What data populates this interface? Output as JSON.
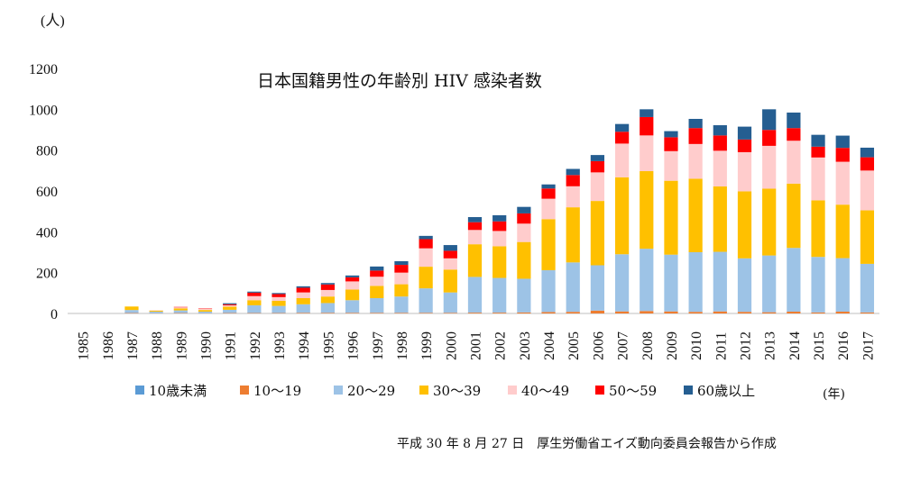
{
  "chart_data": {
    "type": "bar",
    "stacked": true,
    "title": "日本国籍男性の年齢別 HIV 感染者数",
    "ylabel": "(人)",
    "xlabel": "(年)",
    "ylim": [
      0,
      1200
    ],
    "yticks": [
      "0",
      "200",
      "400",
      "600",
      "800",
      "1000",
      "1200"
    ],
    "grid": false,
    "legend_position": "bottom",
    "categories": [
      "1985",
      "1986",
      "1987",
      "1988",
      "1989",
      "1990",
      "1991",
      "1992",
      "1993",
      "1994",
      "1995",
      "1996",
      "1997",
      "1998",
      "1999",
      "2000",
      "2001",
      "2002",
      "2003",
      "2004",
      "2005",
      "2006",
      "2007",
      "2008",
      "2009",
      "2010",
      "2011",
      "2012",
      "2013",
      "2014",
      "2015",
      "2016",
      "2017"
    ],
    "series": [
      {
        "name": "10歳未満",
        "color": "#5b9bd5",
        "values": [
          0,
          0,
          0,
          0,
          0,
          0,
          0,
          0,
          0,
          0,
          0,
          0,
          0,
          0,
          0,
          0,
          0,
          0,
          0,
          0,
          0,
          0,
          0,
          0,
          0,
          0,
          0,
          0,
          0,
          0,
          0,
          0,
          0
        ]
      },
      {
        "name": "10～19",
        "color": "#ed7d31",
        "values": [
          0,
          0,
          2,
          1,
          2,
          1,
          2,
          2,
          2,
          3,
          3,
          3,
          3,
          3,
          3,
          3,
          4,
          4,
          5,
          7,
          8,
          14,
          10,
          12,
          10,
          8,
          10,
          8,
          6,
          9,
          5,
          9,
          5
        ]
      },
      {
        "name": "20～29",
        "color": "#9dc3e6",
        "values": [
          0,
          0,
          15,
          8,
          13,
          8,
          16,
          38,
          35,
          42,
          48,
          62,
          72,
          80,
          120,
          100,
          175,
          170,
          165,
          205,
          242,
          222,
          280,
          305,
          278,
          292,
          292,
          262,
          278,
          312,
          272,
          262,
          238
        ]
      },
      {
        "name": "30～39",
        "color": "#ffc000",
        "values": [
          0,
          0,
          17,
          5,
          10,
          8,
          15,
          25,
          25,
          30,
          32,
          52,
          60,
          60,
          106,
          112,
          160,
          155,
          180,
          250,
          270,
          315,
          377,
          380,
          362,
          360,
          320,
          328,
          327,
          315,
          277,
          262,
          262
        ]
      },
      {
        "name": "40～49",
        "color": "#ffcccc",
        "values": [
          0,
          0,
          0,
          2,
          5,
          5,
          7,
          20,
          18,
          28,
          32,
          40,
          45,
          57,
          90,
          55,
          70,
          75,
          90,
          100,
          103,
          140,
          165,
          175,
          145,
          170,
          175,
          192,
          210,
          210,
          210,
          210,
          195
        ]
      },
      {
        "name": "50～59",
        "color": "#ff0000",
        "values": [
          0,
          0,
          0,
          0,
          2,
          2,
          5,
          17,
          15,
          23,
          27,
          20,
          30,
          38,
          45,
          37,
          38,
          47,
          50,
          50,
          55,
          55,
          58,
          90,
          68,
          78,
          75,
          62,
          78,
          62,
          53,
          68,
          65
        ]
      },
      {
        "name": "60歳以上",
        "color": "#255e91",
        "values": [
          0,
          0,
          0,
          0,
          0,
          0,
          5,
          5,
          5,
          7,
          7,
          9,
          20,
          18,
          16,
          28,
          25,
          30,
          32,
          20,
          30,
          30,
          38,
          38,
          30,
          45,
          50,
          63,
          101,
          76,
          58,
          60,
          47
        ]
      }
    ],
    "source_note": "平成 30 年 8 月 27 日　厚生労働省エイズ動向委員会報告から作成"
  }
}
